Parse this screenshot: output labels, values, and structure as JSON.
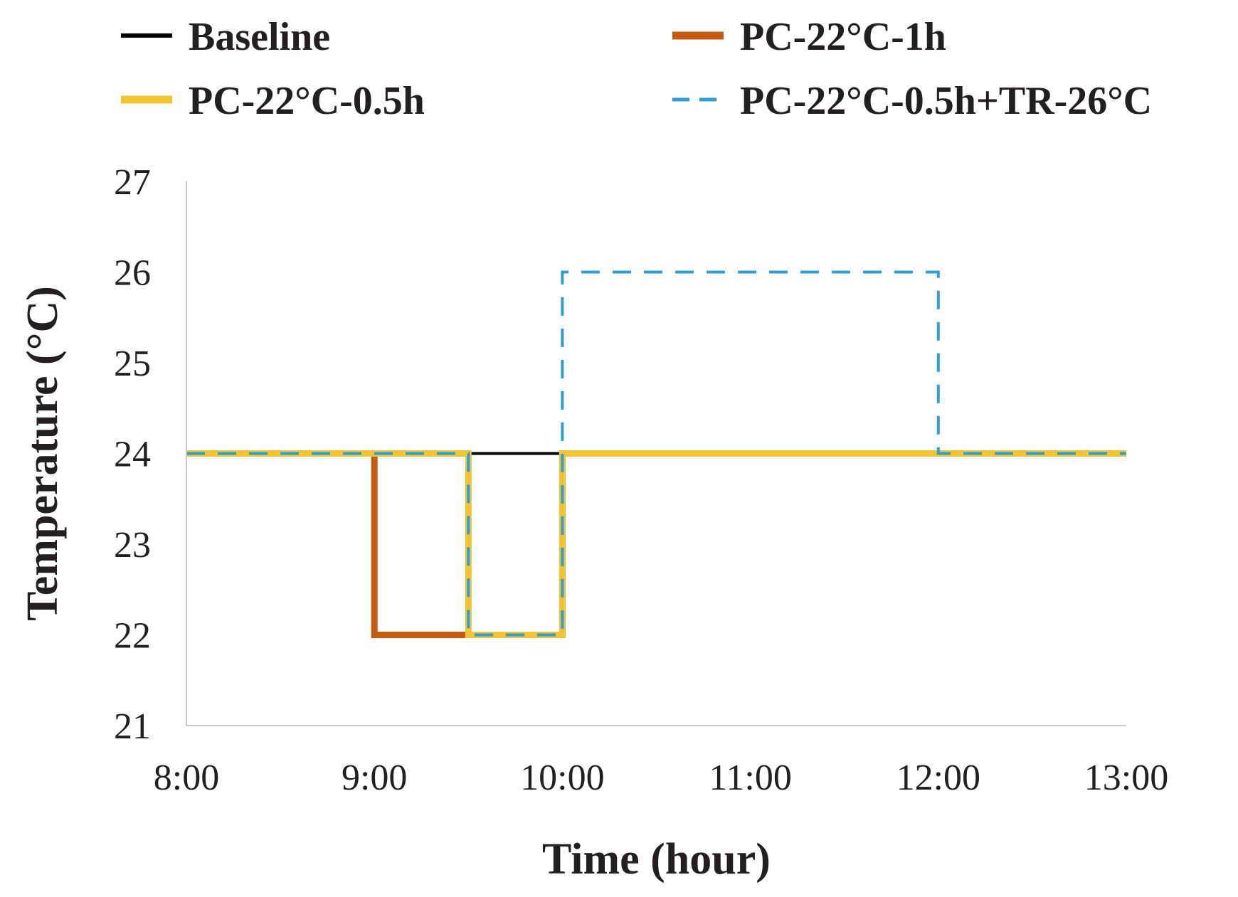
{
  "chart_data": {
    "type": "line",
    "title": "",
    "xlabel": "Time (hour)",
    "ylabel": "Temperature (°C)",
    "xlim": [
      8,
      13
    ],
    "ylim": [
      21,
      27
    ],
    "x_ticks": [
      8,
      9,
      10,
      11,
      12,
      13
    ],
    "x_tick_labels": [
      "8:00",
      "9:00",
      "10:00",
      "11:00",
      "12:00",
      "13:00"
    ],
    "y_ticks": [
      21,
      22,
      23,
      24,
      25,
      26,
      27
    ],
    "y_tick_labels": [
      "21",
      "22",
      "23",
      "24",
      "25",
      "26",
      "27"
    ],
    "grid": false,
    "legend_position": "top",
    "series": [
      {
        "name": "Baseline",
        "color": "#000000",
        "style": "solid",
        "x": [
          8,
          13
        ],
        "y": [
          24,
          24
        ]
      },
      {
        "name": "PC-22°C-1h",
        "color": "#c55a11",
        "style": "solid",
        "x": [
          8,
          9,
          9,
          10,
          10,
          13
        ],
        "y": [
          24,
          24,
          22,
          22,
          24,
          24
        ]
      },
      {
        "name": "PC-22°C-0.5h",
        "color": "#f4c430",
        "style": "solid",
        "x": [
          8,
          9.5,
          9.5,
          10,
          10,
          13
        ],
        "y": [
          24,
          24,
          22,
          22,
          24,
          24
        ]
      },
      {
        "name": "PC-22°C-0.5h+TR-26°C",
        "color": "#2e9fd4",
        "style": "dashed",
        "x": [
          8,
          9.5,
          9.5,
          10,
          10,
          12,
          12,
          13
        ],
        "y": [
          24,
          24,
          22,
          22,
          26,
          26,
          24,
          24
        ]
      }
    ]
  }
}
